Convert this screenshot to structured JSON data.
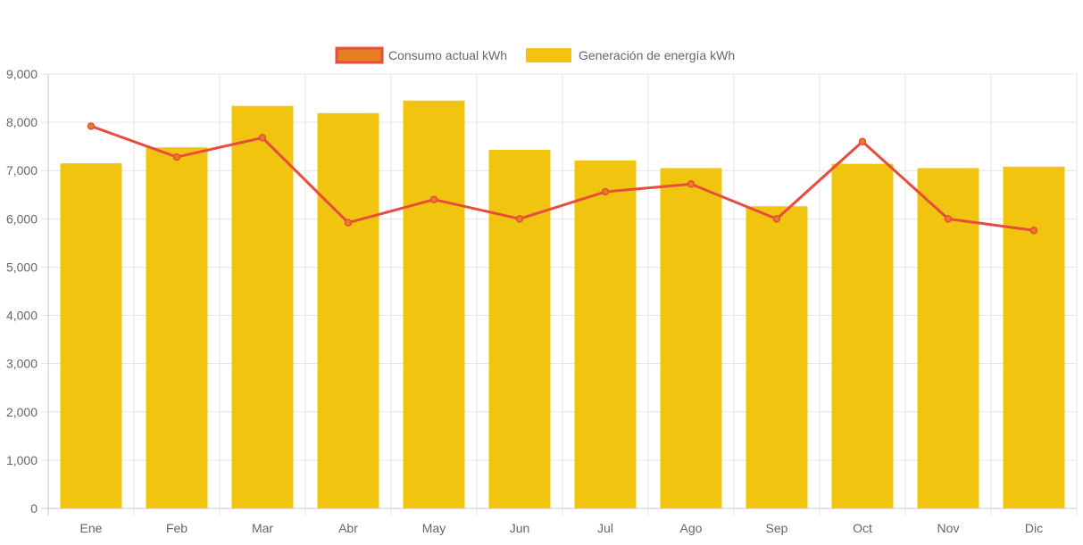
{
  "chart_data": {
    "type": "bar",
    "categories": [
      "Ene",
      "Feb",
      "Mar",
      "Abr",
      "May",
      "Jun",
      "Jul",
      "Ago",
      "Sep",
      "Oct",
      "Nov",
      "Dic"
    ],
    "series": [
      {
        "name": "Consumo actual kWh",
        "type": "line",
        "color": "#e74c3c",
        "point_fill": "#e67e22",
        "values": [
          7920,
          7280,
          7680,
          5920,
          6400,
          6000,
          6560,
          6720,
          6000,
          7600,
          6000,
          5760
        ]
      },
      {
        "name": "Generación de energía kWh",
        "type": "bar",
        "color": "#f1c40f",
        "values": [
          7150,
          7480,
          8340,
          8190,
          8450,
          7430,
          7210,
          7050,
          6260,
          7140,
          7050,
          7080
        ]
      }
    ],
    "title": "",
    "xlabel": "",
    "ylabel": "",
    "ylim": [
      0,
      9000
    ],
    "yticks": [
      "0",
      "1,000",
      "2,000",
      "3,000",
      "4,000",
      "5,000",
      "6,000",
      "7,000",
      "8,000",
      "9,000"
    ],
    "grid": true,
    "legend_position": "top"
  }
}
